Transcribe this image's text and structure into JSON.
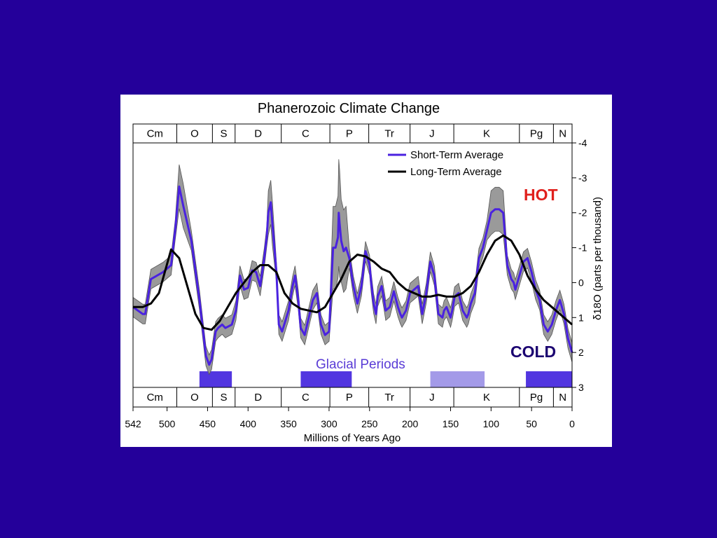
{
  "chart_data": {
    "type": "line",
    "title": "Phanerozoic Climate Change",
    "xlabel": "Millions of Years Ago",
    "ylabel": "δ18O (parts per thousand)",
    "xlim": [
      542,
      0
    ],
    "ylim": [
      3,
      -4
    ],
    "x_ticks": [
      542,
      500,
      450,
      400,
      350,
      300,
      250,
      200,
      150,
      100,
      50,
      0
    ],
    "y_ticks": [
      -4,
      -3,
      -2,
      -1,
      0,
      1,
      2,
      3
    ],
    "legend_position": "top-right",
    "periods": [
      {
        "label": "Cm",
        "start": 542,
        "end": 488
      },
      {
        "label": "O",
        "start": 488,
        "end": 444
      },
      {
        "label": "S",
        "start": 444,
        "end": 416
      },
      {
        "label": "D",
        "start": 416,
        "end": 359
      },
      {
        "label": "C",
        "start": 359,
        "end": 299
      },
      {
        "label": "P",
        "start": 299,
        "end": 251
      },
      {
        "label": "Tr",
        "start": 251,
        "end": 200
      },
      {
        "label": "J",
        "start": 200,
        "end": 146
      },
      {
        "label": "K",
        "start": 146,
        "end": 65
      },
      {
        "label": "Pg",
        "start": 65,
        "end": 23
      },
      {
        "label": "N",
        "start": 23,
        "end": 0
      }
    ],
    "annotations": {
      "hot": "HOT",
      "cold": "COLD",
      "glacial": "Glacial Periods"
    },
    "glacial_periods": [
      {
        "start": 460,
        "end": 420,
        "strength": "strong"
      },
      {
        "start": 335,
        "end": 272,
        "strength": "strong"
      },
      {
        "start": 175,
        "end": 108,
        "strength": "weak"
      },
      {
        "start": 57,
        "end": 0,
        "strength": "strong"
      }
    ],
    "series": [
      {
        "name": "Short-Term Average",
        "color": "#4a22e0",
        "x": [
          542,
          530,
          527,
          520,
          505,
          495,
          490,
          485,
          480,
          470,
          460,
          452,
          448,
          445,
          440,
          437,
          432,
          428,
          420,
          415,
          410,
          405,
          400,
          395,
          390,
          385,
          380,
          377,
          375,
          372,
          370,
          365,
          362,
          358,
          350,
          345,
          342,
          338,
          335,
          330,
          325,
          320,
          315,
          310,
          305,
          300,
          295,
          292,
          289,
          288,
          287,
          285,
          282,
          279,
          275,
          270,
          265,
          260,
          257,
          255,
          250,
          248,
          245,
          242,
          240,
          235,
          232,
          230,
          225,
          220,
          215,
          212,
          210,
          205,
          200,
          195,
          190,
          185,
          180,
          175,
          170,
          165,
          160,
          158,
          155,
          150,
          148,
          145,
          140,
          135,
          130,
          128,
          125,
          120,
          115,
          110,
          105,
          100,
          95,
          90,
          85,
          80,
          75,
          72,
          70,
          65,
          60,
          55,
          50,
          45,
          40,
          35,
          30,
          25,
          20,
          15,
          10,
          5,
          0
        ],
        "y": [
          0.7,
          0.9,
          0.9,
          -0.1,
          -0.3,
          -0.5,
          -1.5,
          -2.75,
          -2.2,
          -1.2,
          0.5,
          2.1,
          2.35,
          2.2,
          1.4,
          1.3,
          1.2,
          1.3,
          1.2,
          0.8,
          -0.2,
          0.2,
          0.15,
          -0.35,
          -0.3,
          0.1,
          -0.7,
          -1.3,
          -2.0,
          -2.3,
          -1.7,
          -0.3,
          1.2,
          1.4,
          0.8,
          0.1,
          -0.2,
          0.5,
          1.3,
          1.5,
          1.0,
          0.5,
          0.3,
          1.2,
          1.5,
          1.4,
          -1.0,
          -1.0,
          -1.3,
          -2.0,
          -1.7,
          -1.2,
          -0.9,
          -1.0,
          -0.7,
          0.1,
          0.6,
          0.1,
          -0.5,
          -0.9,
          -0.5,
          0.0,
          0.6,
          0.9,
          0.4,
          0.1,
          0.5,
          0.8,
          0.7,
          0.25,
          0.7,
          0.9,
          1.0,
          0.8,
          0.3,
          0.2,
          0.1,
          0.9,
          0.3,
          -0.6,
          -0.2,
          0.9,
          1.0,
          0.8,
          0.7,
          1.0,
          0.8,
          0.4,
          0.3,
          0.8,
          1.0,
          0.9,
          0.6,
          0.3,
          -0.7,
          -1.0,
          -1.5,
          -2.0,
          -2.1,
          -2.1,
          -2.0,
          -0.5,
          -0.1,
          0.0,
          0.2,
          -0.2,
          -0.6,
          -0.7,
          -0.3,
          0.2,
          0.5,
          1.2,
          1.4,
          1.2,
          0.8,
          0.5,
          0.9,
          1.6,
          2.0
        ]
      },
      {
        "name": "Long-Term Average",
        "color": "#000000",
        "x": [
          542,
          530,
          520,
          510,
          495,
          485,
          475,
          465,
          455,
          445,
          435,
          425,
          415,
          405,
          395,
          385,
          375,
          365,
          355,
          345,
          335,
          325,
          315,
          305,
          295,
          285,
          275,
          265,
          255,
          245,
          235,
          225,
          215,
          205,
          195,
          185,
          175,
          165,
          155,
          145,
          135,
          125,
          115,
          105,
          95,
          85,
          75,
          65,
          55,
          45,
          35,
          25,
          15,
          5,
          0
        ],
        "y": [
          0.7,
          0.7,
          0.6,
          0.3,
          -0.95,
          -0.7,
          0.1,
          0.9,
          1.3,
          1.35,
          1.1,
          0.7,
          0.3,
          0.0,
          -0.3,
          -0.5,
          -0.5,
          -0.3,
          0.3,
          0.6,
          0.75,
          0.8,
          0.85,
          0.7,
          0.3,
          -0.1,
          -0.6,
          -0.8,
          -0.75,
          -0.6,
          -0.4,
          -0.3,
          0.0,
          0.2,
          0.3,
          0.4,
          0.4,
          0.35,
          0.4,
          0.4,
          0.3,
          0.1,
          -0.3,
          -0.8,
          -1.2,
          -1.35,
          -1.2,
          -0.8,
          -0.2,
          0.2,
          0.5,
          0.7,
          0.9,
          1.1,
          1.2
        ]
      }
    ]
  }
}
